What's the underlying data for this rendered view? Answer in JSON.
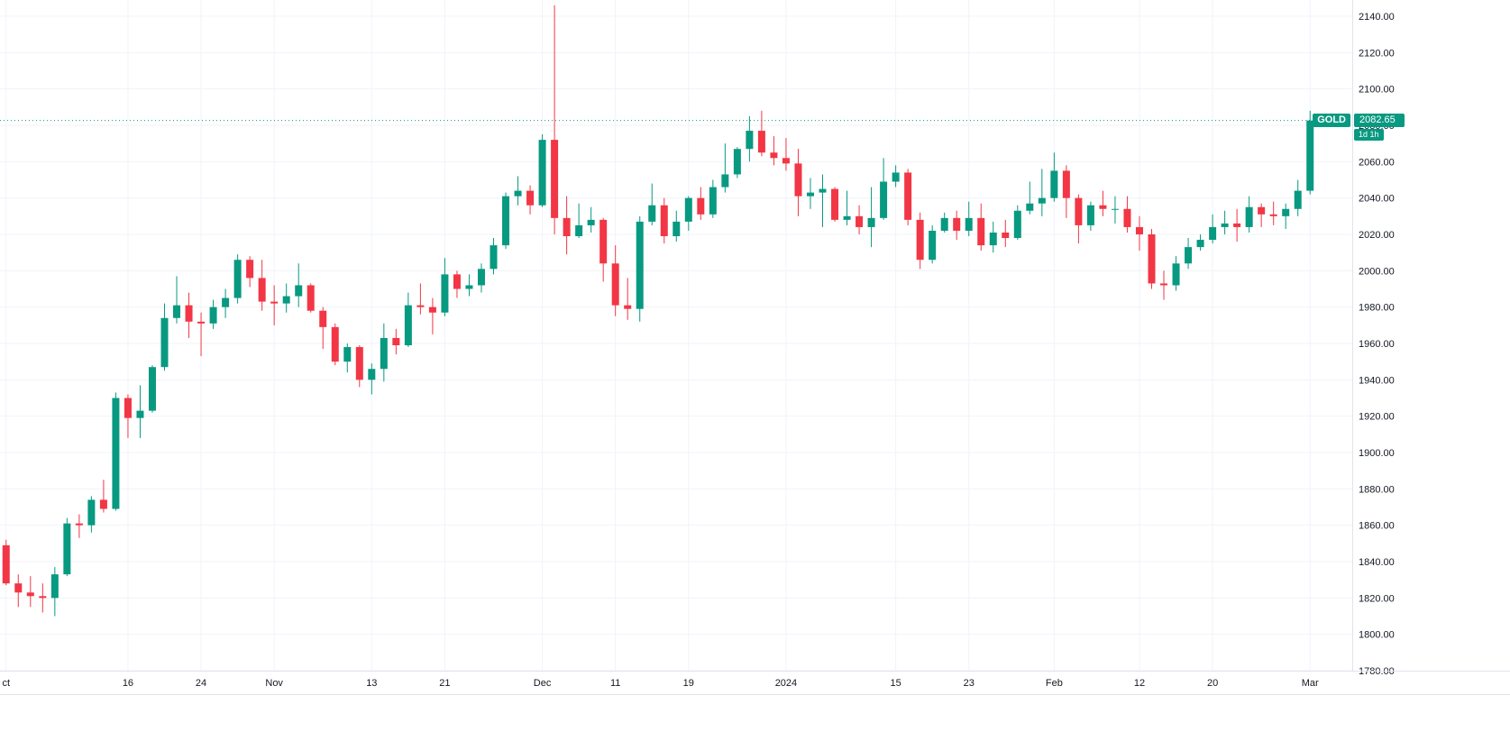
{
  "symbol_badge": {
    "label": "GOLD",
    "price": "2082.65",
    "timeframe": "1d 1h"
  },
  "colors": {
    "up": "#089981",
    "down": "#f23645",
    "grid": "#f0f3fa",
    "border": "#e0e3eb",
    "axis_text": "#131722",
    "price_line": "#089981",
    "badge_bg": "#089981",
    "badge_text": "#ffffff"
  },
  "y_axis": {
    "min": 1780,
    "max": 2140,
    "tick_step": 20,
    "ticks": [
      "2140.00",
      "2120.00",
      "2100.00",
      "2080.00",
      "2060.00",
      "2040.00",
      "2020.00",
      "2000.00",
      "1980.00",
      "1960.00",
      "1940.00",
      "1920.00",
      "1900.00",
      "1880.00",
      "1860.00",
      "1840.00",
      "1820.00",
      "1800.00",
      "1780.00"
    ]
  },
  "x_axis": {
    "ticks": [
      {
        "label": "ct",
        "date": "2023-10-02"
      },
      {
        "label": "16",
        "date": "2023-10-16"
      },
      {
        "label": "24",
        "date": "2023-10-24"
      },
      {
        "label": "Nov",
        "date": "2023-11-01"
      },
      {
        "label": "13",
        "date": "2023-11-13"
      },
      {
        "label": "21",
        "date": "2023-11-21"
      },
      {
        "label": "Dec",
        "date": "2023-12-01"
      },
      {
        "label": "11",
        "date": "2023-12-11"
      },
      {
        "label": "19",
        "date": "2023-12-19"
      },
      {
        "label": "2024",
        "date": "2024-01-02"
      },
      {
        "label": "15",
        "date": "2024-01-15"
      },
      {
        "label": "23",
        "date": "2024-01-23"
      },
      {
        "label": "Feb",
        "date": "2024-02-01"
      },
      {
        "label": "12",
        "date": "2024-02-12"
      },
      {
        "label": "20",
        "date": "2024-02-20"
      },
      {
        "label": "Mar",
        "date": "2024-03-01"
      }
    ]
  },
  "chart_data": {
    "type": "candlestick",
    "symbol": "GOLD",
    "timeframe": "1d 1h",
    "last_price": 2082.65,
    "ylim": [
      1780,
      2140
    ],
    "grid": true,
    "columns": [
      "date",
      "open",
      "high",
      "low",
      "close"
    ],
    "candles": [
      [
        "2023-10-02",
        1849,
        1852,
        1827,
        1828
      ],
      [
        "2023-10-03",
        1828,
        1833,
        1815,
        1823
      ],
      [
        "2023-10-04",
        1823,
        1832,
        1815,
        1821
      ],
      [
        "2023-10-05",
        1821,
        1828,
        1812,
        1820
      ],
      [
        "2023-10-06",
        1820,
        1837,
        1810,
        1833
      ],
      [
        "2023-10-09",
        1833,
        1864,
        1832,
        1861
      ],
      [
        "2023-10-10",
        1861,
        1866,
        1853,
        1860
      ],
      [
        "2023-10-11",
        1860,
        1876,
        1856,
        1874
      ],
      [
        "2023-10-12",
        1874,
        1885,
        1867,
        1869
      ],
      [
        "2023-10-13",
        1869,
        1933,
        1868,
        1930
      ],
      [
        "2023-10-16",
        1930,
        1932,
        1908,
        1919
      ],
      [
        "2023-10-17",
        1919,
        1937,
        1908,
        1923
      ],
      [
        "2023-10-18",
        1923,
        1948,
        1922,
        1947
      ],
      [
        "2023-10-19",
        1947,
        1982,
        1945,
        1974
      ],
      [
        "2023-10-20",
        1974,
        1997,
        1971,
        1981
      ],
      [
        "2023-10-23",
        1981,
        1988,
        1963,
        1972
      ],
      [
        "2023-10-24",
        1972,
        1977,
        1953,
        1971
      ],
      [
        "2023-10-25",
        1971,
        1984,
        1968,
        1980
      ],
      [
        "2023-10-26",
        1980,
        1990,
        1974,
        1985
      ],
      [
        "2023-10-27",
        1985,
        2009,
        1982,
        2006
      ],
      [
        "2023-10-30",
        2006,
        2008,
        1991,
        1996
      ],
      [
        "2023-10-31",
        1996,
        2006,
        1978,
        1983
      ],
      [
        "2023-11-01",
        1983,
        1992,
        1970,
        1982
      ],
      [
        "2023-11-02",
        1982,
        1993,
        1977,
        1986
      ],
      [
        "2023-11-03",
        1986,
        2004,
        1980,
        1992
      ],
      [
        "2023-11-06",
        1992,
        1993,
        1977,
        1978
      ],
      [
        "2023-11-07",
        1978,
        1980,
        1957,
        1969
      ],
      [
        "2023-11-08",
        1969,
        1971,
        1948,
        1950
      ],
      [
        "2023-11-09",
        1950,
        1960,
        1944,
        1958
      ],
      [
        "2023-11-10",
        1958,
        1959,
        1936,
        1940
      ],
      [
        "2023-11-13",
        1940,
        1949,
        1932,
        1946
      ],
      [
        "2023-11-14",
        1946,
        1971,
        1939,
        1963
      ],
      [
        "2023-11-15",
        1963,
        1968,
        1954,
        1959
      ],
      [
        "2023-11-16",
        1959,
        1988,
        1958,
        1981
      ],
      [
        "2023-11-17",
        1981,
        1993,
        1976,
        1980
      ],
      [
        "2023-11-20",
        1980,
        1985,
        1965,
        1977
      ],
      [
        "2023-11-21",
        1977,
        2007,
        1975,
        1998
      ],
      [
        "2023-11-22",
        1998,
        2000,
        1985,
        1990
      ],
      [
        "2023-11-23",
        1990,
        1998,
        1986,
        1992
      ],
      [
        "2023-11-24",
        1992,
        2004,
        1988,
        2001
      ],
      [
        "2023-11-27",
        2001,
        2018,
        1998,
        2014
      ],
      [
        "2023-11-28",
        2014,
        2043,
        2012,
        2041
      ],
      [
        "2023-11-29",
        2041,
        2052,
        2036,
        2044
      ],
      [
        "2023-11-30",
        2044,
        2047,
        2031,
        2036
      ],
      [
        "2023-12-01",
        2036,
        2075,
        2035,
        2072
      ],
      [
        "2023-12-04",
        2072,
        2146,
        2020,
        2029
      ],
      [
        "2023-12-05",
        2029,
        2041,
        2009,
        2019
      ],
      [
        "2023-12-06",
        2019,
        2037,
        2018,
        2025
      ],
      [
        "2023-12-07",
        2025,
        2035,
        2021,
        2028
      ],
      [
        "2023-12-08",
        2028,
        2029,
        1994,
        2004
      ],
      [
        "2023-12-11",
        2004,
        2014,
        1975,
        1981
      ],
      [
        "2023-12-12",
        1981,
        1996,
        1973,
        1979
      ],
      [
        "2023-12-13",
        1979,
        2030,
        1972,
        2027
      ],
      [
        "2023-12-14",
        2027,
        2048,
        2025,
        2036
      ],
      [
        "2023-12-15",
        2036,
        2040,
        2015,
        2019
      ],
      [
        "2023-12-18",
        2019,
        2033,
        2016,
        2027
      ],
      [
        "2023-12-19",
        2027,
        2041,
        2022,
        2040
      ],
      [
        "2023-12-20",
        2040,
        2046,
        2028,
        2031
      ],
      [
        "2023-12-21",
        2031,
        2050,
        2029,
        2046
      ],
      [
        "2023-12-22",
        2046,
        2070,
        2043,
        2053
      ],
      [
        "2023-12-26",
        2053,
        2068,
        2051,
        2067
      ],
      [
        "2023-12-27",
        2067,
        2085,
        2060,
        2077
      ],
      [
        "2023-12-28",
        2077,
        2088,
        2063,
        2065
      ],
      [
        "2023-12-29",
        2065,
        2074,
        2058,
        2062
      ],
      [
        "2024-01-02",
        2062,
        2073,
        2055,
        2059
      ],
      [
        "2024-01-03",
        2059,
        2067,
        2030,
        2041
      ],
      [
        "2024-01-04",
        2041,
        2051,
        2034,
        2043
      ],
      [
        "2024-01-05",
        2043,
        2053,
        2024,
        2045
      ],
      [
        "2024-01-08",
        2045,
        2046,
        2027,
        2028
      ],
      [
        "2024-01-09",
        2028,
        2044,
        2025,
        2030
      ],
      [
        "2024-01-10",
        2030,
        2036,
        2020,
        2024
      ],
      [
        "2024-01-11",
        2024,
        2046,
        2013,
        2029
      ],
      [
        "2024-01-12",
        2029,
        2062,
        2028,
        2049
      ],
      [
        "2024-01-15",
        2049,
        2058,
        2046,
        2054
      ],
      [
        "2024-01-16",
        2054,
        2056,
        2025,
        2028
      ],
      [
        "2024-01-17",
        2028,
        2032,
        2001,
        2006
      ],
      [
        "2024-01-18",
        2006,
        2025,
        2004,
        2022
      ],
      [
        "2024-01-19",
        2022,
        2032,
        2021,
        2029
      ],
      [
        "2024-01-22",
        2029,
        2033,
        2017,
        2022
      ],
      [
        "2024-01-23",
        2022,
        2038,
        2019,
        2029
      ],
      [
        "2024-01-24",
        2029,
        2037,
        2011,
        2014
      ],
      [
        "2024-01-25",
        2014,
        2027,
        2010,
        2021
      ],
      [
        "2024-01-26",
        2021,
        2028,
        2013,
        2018
      ],
      [
        "2024-01-29",
        2018,
        2036,
        2017,
        2033
      ],
      [
        "2024-01-30",
        2033,
        2049,
        2031,
        2037
      ],
      [
        "2024-01-31",
        2037,
        2056,
        2030,
        2040
      ],
      [
        "2024-02-01",
        2040,
        2065,
        2038,
        2055
      ],
      [
        "2024-02-02",
        2055,
        2058,
        2029,
        2040
      ],
      [
        "2024-02-05",
        2040,
        2042,
        2015,
        2025
      ],
      [
        "2024-02-06",
        2025,
        2038,
        2022,
        2036
      ],
      [
        "2024-02-07",
        2036,
        2044,
        2030,
        2034
      ],
      [
        "2024-02-08",
        2034,
        2041,
        2026,
        2034
      ],
      [
        "2024-02-09",
        2034,
        2041,
        2021,
        2024
      ],
      [
        "2024-02-12",
        2024,
        2030,
        2011,
        2020
      ],
      [
        "2024-02-13",
        2020,
        2023,
        1990,
        1993
      ],
      [
        "2024-02-14",
        1993,
        2000,
        1984,
        1992
      ],
      [
        "2024-02-15",
        1992,
        2008,
        1989,
        2004
      ],
      [
        "2024-02-16",
        2004,
        2018,
        2001,
        2013
      ],
      [
        "2024-02-19",
        2013,
        2020,
        2011,
        2017
      ],
      [
        "2024-02-20",
        2017,
        2031,
        2015,
        2024
      ],
      [
        "2024-02-21",
        2024,
        2033,
        2020,
        2026
      ],
      [
        "2024-02-22",
        2026,
        2034,
        2016,
        2024
      ],
      [
        "2024-02-23",
        2024,
        2041,
        2021,
        2035
      ],
      [
        "2024-02-26",
        2035,
        2037,
        2024,
        2031
      ],
      [
        "2024-02-27",
        2031,
        2038,
        2025,
        2030
      ],
      [
        "2024-02-28",
        2030,
        2037,
        2023,
        2034
      ],
      [
        "2024-02-29",
        2034,
        2050,
        2030,
        2044
      ],
      [
        "2024-03-01",
        2044,
        2088,
        2042,
        2082.65
      ]
    ]
  }
}
